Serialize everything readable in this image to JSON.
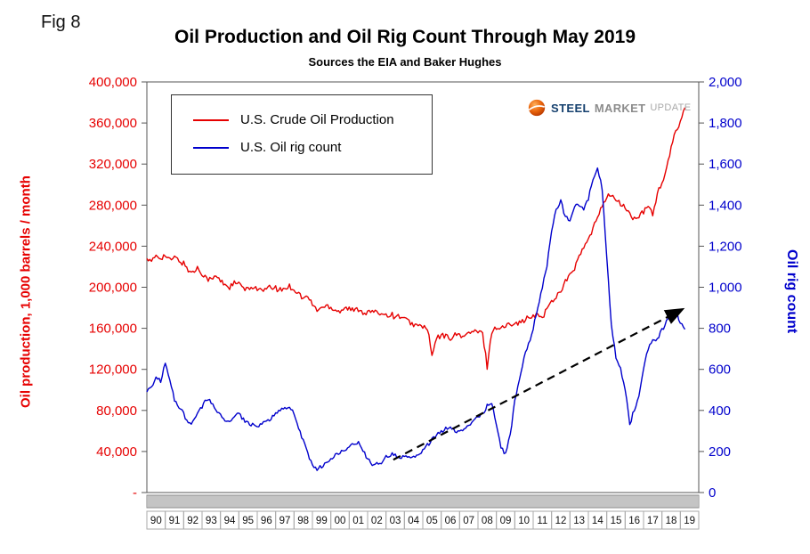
{
  "fig_label": "Fig 8",
  "header": {
    "title": "Oil Production and Oil Rig Count Through May 2019",
    "subtitle": "Sources the EIA and Baker Hughes"
  },
  "logo": {
    "steel": "STEEL",
    "market": "MARKET",
    "update": "UPDATE",
    "ball_color": "#e8630a"
  },
  "axes": {
    "left_title": "Oil production, 1,000 barrels / month",
    "right_title": "Oil rig count",
    "left_ticks": [
      "400,000",
      "360,000",
      "320,000",
      "280,000",
      "240,000",
      "200,000",
      "160,000",
      "120,000",
      "80,000",
      "40,000",
      "-"
    ],
    "right_ticks": [
      "2,000",
      "1,800",
      "1,600",
      "1,400",
      "1,200",
      "1,000",
      "800",
      "600",
      "400",
      "200",
      "0"
    ],
    "x_labels": [
      "90",
      "91",
      "92",
      "93",
      "94",
      "95",
      "96",
      "97",
      "98",
      "99",
      "00",
      "01",
      "02",
      "03",
      "04",
      "05",
      "06",
      "07",
      "08",
      "09",
      "10",
      "11",
      "12",
      "13",
      "14",
      "15",
      "16",
      "17",
      "18",
      "19"
    ]
  },
  "legend": {
    "items": [
      {
        "label": "U.S. Crude Oil Production"
      },
      {
        "label": "U.S. Oil rig count"
      }
    ]
  },
  "chart_data": {
    "type": "line",
    "title": "Oil Production and Oil Rig Count Through May 2019",
    "subtitle": "Sources the EIA and Baker Hughes",
    "x_range": [
      1990,
      2020
    ],
    "grid": false,
    "legend_position": "top-left-inside",
    "left_axis": {
      "label": "Oil production, 1,000 barrels / month",
      "range": [
        0,
        400000
      ],
      "tick_step": 40000
    },
    "right_axis": {
      "label": "Oil rig count",
      "range": [
        0,
        2000
      ],
      "tick_step": 200
    },
    "series": [
      {
        "name": "U.S. Crude Oil Production",
        "axis": "left",
        "color": "#e60000",
        "x_start": 1990.0,
        "x_step": 0.25,
        "noise_amp": 2800,
        "values": [
          228000,
          224000,
          231000,
          229000,
          231000,
          226000,
          229000,
          226000,
          223000,
          217000,
          214000,
          219000,
          214000,
          209000,
          207000,
          211000,
          206000,
          203000,
          200000,
          204000,
          203000,
          199000,
          197000,
          201000,
          199000,
          196000,
          198000,
          200000,
          199000,
          197000,
          199000,
          201000,
          198000,
          194000,
          189000,
          191000,
          183000,
          178000,
          180000,
          182000,
          181000,
          178000,
          177000,
          180000,
          179000,
          177000,
          179000,
          176000,
          175000,
          177000,
          174000,
          176000,
          173000,
          174000,
          171000,
          172000,
          169000,
          166000,
          164000,
          162000,
          162000,
          160000,
          133000,
          150000,
          153000,
          152000,
          151000,
          153000,
          154000,
          152000,
          155000,
          157000,
          156000,
          155000,
          123000,
          157000,
          161000,
          160000,
          162000,
          164000,
          167000,
          165000,
          168000,
          170000,
          171000,
          173000,
          171000,
          179000,
          186000,
          191000,
          197000,
          206000,
          211000,
          219000,
          229000,
          239000,
          246000,
          256000,
          269000,
          281000,
          287000,
          291000,
          284000,
          281000,
          278000,
          271000,
          266000,
          269000,
          273000,
          279000,
          272000,
          291000,
          301000,
          315000,
          335000,
          352000,
          362000,
          375000
        ]
      },
      {
        "name": "U.S. Oil rig count",
        "axis": "right",
        "color": "#0000cc",
        "x_start": 1990.0,
        "x_step": 0.25,
        "noise_amp": 10,
        "values": [
          490,
          520,
          555,
          545,
          625,
          545,
          450,
          415,
          385,
          330,
          345,
          395,
          420,
          455,
          440,
          405,
          385,
          355,
          345,
          370,
          385,
          355,
          340,
          330,
          320,
          330,
          345,
          365,
          385,
          400,
          420,
          410,
          385,
          320,
          250,
          185,
          130,
          115,
          128,
          142,
          160,
          180,
          200,
          212,
          222,
          232,
          242,
          205,
          165,
          140,
          137,
          147,
          172,
          186,
          181,
          177,
          172,
          167,
          172,
          187,
          202,
          230,
          258,
          282,
          292,
          312,
          322,
          302,
          292,
          312,
          332,
          352,
          362,
          385,
          422,
          432,
          330,
          222,
          188,
          282,
          442,
          542,
          652,
          722,
          802,
          902,
          1002,
          1102,
          1272,
          1382,
          1422,
          1342,
          1332,
          1392,
          1402,
          1382,
          1432,
          1532,
          1582,
          1482,
          1150,
          820,
          655,
          602,
          505,
          330,
          405,
          475,
          602,
          702,
          752,
          742,
          792,
          832,
          862,
          882,
          832,
          795
        ]
      },
      {
        "name": "Long-term rig count trend",
        "axis": "right",
        "color": "#000000",
        "style": "dashed-arrow",
        "x": [
          2003.4,
          2019.05
        ],
        "values": [
          160,
          890
        ]
      }
    ]
  }
}
